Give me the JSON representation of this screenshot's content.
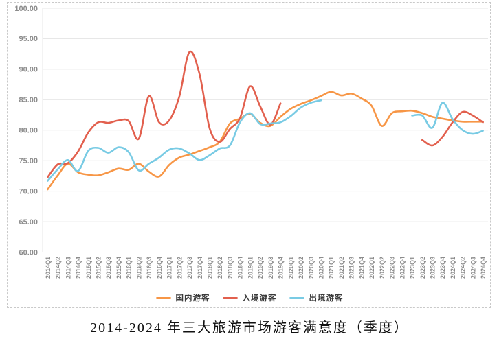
{
  "title": "2014-2024 年三大旅游市场游客满意度（季度）",
  "legend": {
    "items": [
      {
        "key": "domestic",
        "label": "国内游客"
      },
      {
        "key": "inbound",
        "label": "入境游客"
      },
      {
        "key": "outbound",
        "label": "出境游客"
      }
    ]
  },
  "colors": {
    "domestic": "#F79646",
    "inbound": "#E2604E",
    "outbound": "#79CBE4",
    "grid": "#E7E7E7",
    "axis": "#BFBFBF",
    "tick_text": "#8C8C8C"
  },
  "y_axis": {
    "min": 60,
    "max": 100,
    "step": 5,
    "tick_labels": [
      "100.00",
      "95.00",
      "90.00",
      "85.00",
      "80.00",
      "75.00",
      "70.00",
      "65.00",
      "60.00"
    ]
  },
  "chart_data": {
    "type": "line",
    "title": "2014-2024 年三大旅游市场游客满意度（季度）",
    "xlabel": "",
    "ylabel": "",
    "ylim": [
      60,
      100
    ],
    "grid": true,
    "legend_position": "bottom",
    "smooth": true,
    "categories": [
      "2014Q1",
      "2014Q2",
      "2014Q3",
      "2014Q4",
      "2015Q1",
      "2015Q2",
      "2015Q3",
      "2015Q4",
      "2016Q1",
      "2016Q2",
      "2016Q3",
      "2016Q4",
      "2017Q1",
      "2017Q2",
      "2017Q3",
      "2017Q4",
      "2018Q1",
      "2018Q2",
      "2018Q3",
      "2018Q4",
      "2019Q1",
      "2019Q2",
      "2019Q3",
      "2019Q4",
      "2020Q1",
      "2020Q2",
      "2020Q3",
      "2020Q4",
      "2021Q1",
      "2021Q2",
      "2021Q3",
      "2021Q4",
      "2022Q1",
      "2022Q2",
      "2022Q3",
      "2022Q4",
      "2023Q1",
      "2023Q2",
      "2023Q3",
      "2023Q4",
      "2024Q1",
      "2024Q2",
      "2024Q3",
      "2024Q4"
    ],
    "series": [
      {
        "key": "domestic",
        "name": "国内游客",
        "color": "#F79646",
        "values": [
          70.3,
          72.6,
          74.5,
          73.1,
          72.7,
          72.6,
          73.1,
          73.7,
          73.5,
          74.5,
          73.2,
          72.4,
          74.3,
          75.5,
          76.0,
          76.6,
          77.2,
          78.1,
          81.1,
          81.9,
          82.7,
          81.2,
          80.7,
          82.2,
          83.5,
          84.3,
          84.9,
          85.6,
          86.3,
          85.7,
          86.0,
          85.2,
          84.0,
          80.7,
          82.8,
          83.1,
          83.2,
          82.8,
          82.2,
          81.9,
          81.6,
          81.4,
          81.4,
          81.4
        ]
      },
      {
        "key": "inbound",
        "name": "入境游客",
        "color": "#E2604E",
        "values": [
          72.3,
          74.4,
          74.6,
          76.5,
          79.6,
          81.3,
          81.2,
          81.6,
          81.5,
          78.6,
          85.6,
          81.3,
          81.6,
          85.5,
          92.8,
          89.2,
          80.3,
          78.1,
          80.2,
          82.0,
          87.2,
          83.9,
          80.9,
          84.4,
          null,
          null,
          null,
          null,
          null,
          null,
          null,
          null,
          null,
          null,
          null,
          null,
          null,
          78.4,
          77.5,
          78.9,
          81.3,
          83.0,
          82.4,
          81.3
        ]
      },
      {
        "key": "outbound",
        "name": "出境游客",
        "color": "#79CBE4",
        "values": [
          71.7,
          73.6,
          75.1,
          73.3,
          76.6,
          77.1,
          76.3,
          77.2,
          76.4,
          73.4,
          74.5,
          75.5,
          76.8,
          77.0,
          76.2,
          75.1,
          75.9,
          77.0,
          77.5,
          81.3,
          82.8,
          81.0,
          81.1,
          81.3,
          82.3,
          83.7,
          84.5,
          84.9,
          null,
          null,
          null,
          null,
          null,
          null,
          null,
          null,
          82.4,
          82.4,
          80.4,
          84.5,
          81.8,
          80.0,
          79.4,
          79.9
        ]
      }
    ]
  }
}
